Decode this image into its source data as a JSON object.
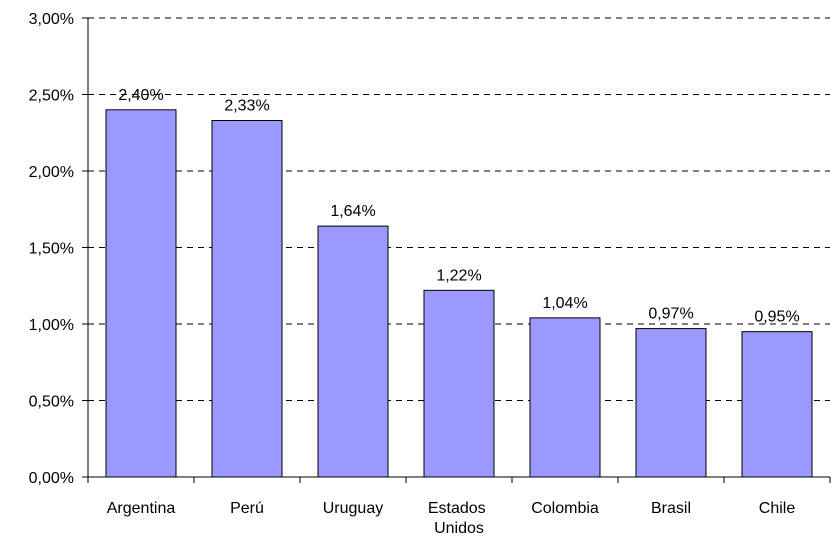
{
  "chart_data": {
    "type": "bar",
    "categories": [
      "Argentina",
      "Perú",
      "Uruguay",
      "Estados Unidos",
      "Colombia",
      "Brasil",
      "Chile"
    ],
    "values": [
      2.4,
      2.33,
      1.64,
      1.22,
      1.04,
      0.97,
      0.95
    ],
    "value_labels": [
      "2,40%",
      "2,33%",
      "1,64%",
      "1,22%",
      "1,04%",
      "0,97%",
      "0,95%"
    ],
    "color": "#9999ff",
    "ylim": [
      0,
      3
    ],
    "yticks": [
      {
        "value": 0,
        "label": "0,00%"
      },
      {
        "value": 0.5,
        "label": "0,50%"
      },
      {
        "value": 1,
        "label": "1,00%"
      },
      {
        "value": 1.5,
        "label": "1,50%"
      },
      {
        "value": 2,
        "label": "2,00%"
      },
      {
        "value": 2.5,
        "label": "2,50%"
      },
      {
        "value": 3,
        "label": "3,00%"
      }
    ],
    "grid": true
  }
}
